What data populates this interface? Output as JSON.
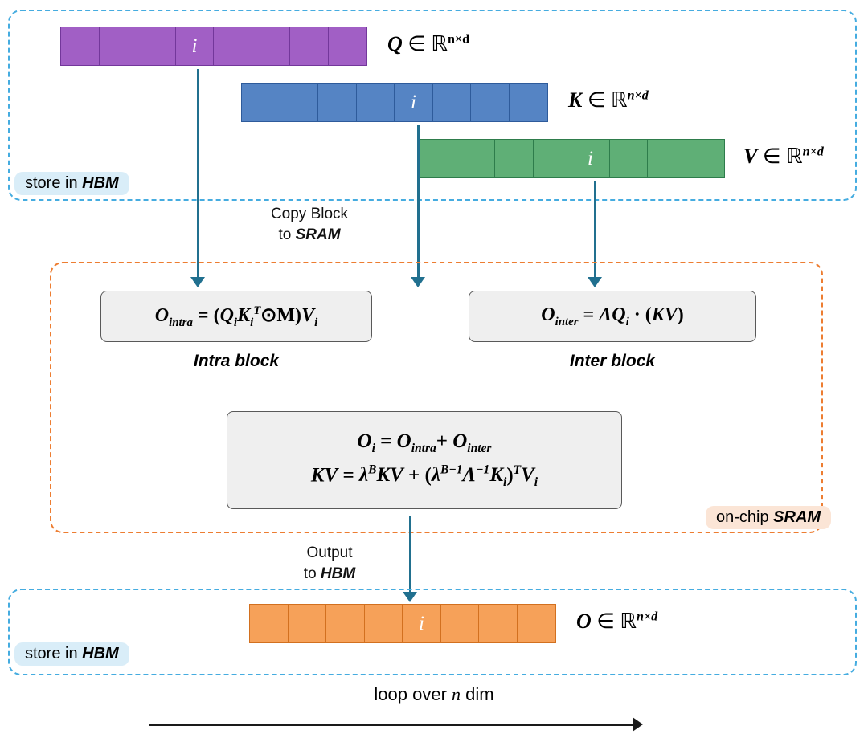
{
  "colors": {
    "hbm_border": "#45ACE0",
    "sram_border": "#ED7D31",
    "hbm_pill_bg": "#D9EDF8",
    "sram_pill_bg": "#FBE5D6",
    "arrow": "#21708F",
    "formula_box_bg": "#EFEFEF",
    "formula_box_border": "#595959"
  },
  "rows": {
    "q": {
      "count": 8,
      "i_index": 3,
      "i_label": "i",
      "fill": "#A15FC5",
      "border": "#73379B",
      "label_html": "<b><i>Q</i></b> ∈ ℝ<sup><b>n×d</b></sup>"
    },
    "k": {
      "count": 8,
      "i_index": 4,
      "i_label": "i",
      "fill": "#5584C4",
      "border": "#2E5B9B",
      "label_html": "<b><i>K</i></b> ∈ ℝ<sup><b><i>n×d</i></b></sup>"
    },
    "v": {
      "count": 8,
      "i_index": 4,
      "i_label": "i",
      "fill": "#5FAF76",
      "border": "#2E7C4B",
      "label_html": "<b><i>V</i></b> ∈ ℝ<sup><b><i>n×d</i></b></sup>"
    },
    "o": {
      "count": 8,
      "i_index": 4,
      "i_label": "i",
      "fill": "#F6A159",
      "border": "#D2701F",
      "label_html": "<b><i>O</i></b> ∈ ℝ<sup><b><i>n×d</i></b></sup>"
    }
  },
  "pills": {
    "store_in_hbm_html": "store in <b><i>HBM</i></b>",
    "on_chip_sram_html": "on-chip <b><i>SRAM</i></b>"
  },
  "notes": {
    "copy_block_html": "Copy Block<br>to <b><i>SRAM</i></b>",
    "output_html": "Output<br>to <b><i>HBM</i></b>",
    "loop_html": "loop over <i>n</i> dim"
  },
  "formulas": {
    "intra_html": "<i>O<sub>intra</sub></i> = (<i>Q<sub>i</sub>K<sub>i</sub><sup>T</sup></i>⊙M)<i>V<sub>i</sub></i>",
    "inter_html": "<i>O<sub>inter</sub></i> = <i>ΛQ<sub>i</sub></i> · (<i>KV</i>)",
    "combine_html": "<i>O<sub>i</sub></i> = <i>O<sub>intra</sub></i>+ <i>O<sub>inter</sub></i>",
    "kv_html": "<i>KV</i> = <i>λ<sup>B</sup>KV</i> + (<i>λ<sup>B−1</sup>Λ<sup>−1</sup>K<sub>i</sub></i>)<sup><i>T</i></sup><i>V<sub>i</sub></i>",
    "intra_caption": "Intra block",
    "inter_caption": "Inter block"
  }
}
